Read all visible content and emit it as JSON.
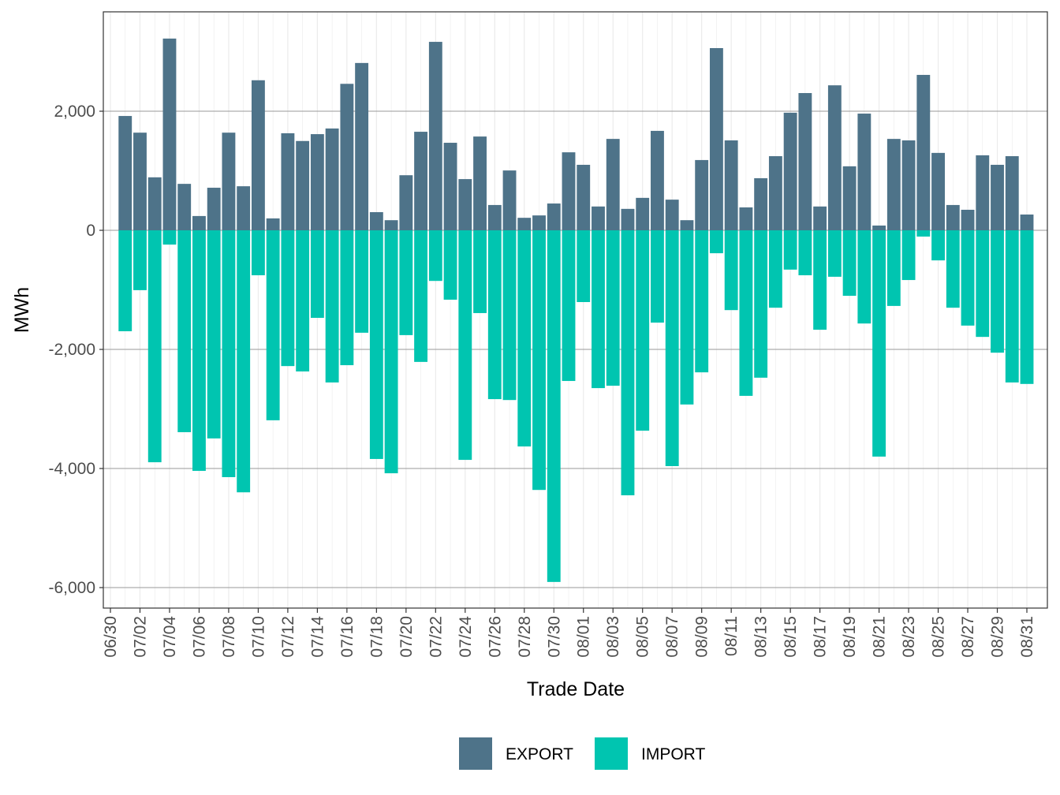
{
  "chart_data": {
    "type": "bar",
    "stacked": true,
    "x_label": "Trade Date",
    "y_label": "MWh",
    "categories": [
      "06/30",
      null,
      "07/02",
      null,
      "07/04",
      null,
      "07/06",
      null,
      "07/08",
      null,
      "07/10",
      null,
      "07/12",
      null,
      "07/14",
      null,
      "07/16",
      null,
      "07/18",
      null,
      "07/20",
      null,
      "07/22",
      null,
      "07/24",
      null,
      "07/26",
      null,
      "07/28",
      null,
      "07/30",
      null,
      "08/01",
      null,
      "08/03",
      null,
      "08/05",
      null,
      "08/07",
      null,
      "08/09",
      null,
      "08/11",
      null,
      "08/13",
      null,
      "08/15",
      null,
      "08/17",
      null,
      "08/19",
      null,
      "08/21",
      null,
      "08/23",
      null,
      "08/25",
      null,
      "08/27",
      null,
      "08/29",
      null,
      "08/31"
    ],
    "series": [
      {
        "name": "EXPORT",
        "color": "#4e7389",
        "values": [
          null,
          1920,
          1640,
          890,
          3220,
          780,
          240,
          715,
          1640,
          740,
          2520,
          200,
          1630,
          1500,
          1615,
          1710,
          2460,
          2810,
          305,
          170,
          925,
          1655,
          3165,
          1470,
          860,
          1575,
          425,
          1005,
          210,
          250,
          450,
          1310,
          1100,
          400,
          1535,
          360,
          545,
          1670,
          515,
          170,
          1180,
          3060,
          1510,
          385,
          875,
          1245,
          1975,
          2305,
          400,
          2435,
          1075,
          1960,
          80,
          1535,
          1510,
          2610,
          1300,
          425,
          345,
          1260,
          1100,
          1245,
          265
        ]
      },
      {
        "name": "IMPORT",
        "color": "#00c5b0",
        "values": [
          null,
          -1695,
          -1005,
          -3895,
          -240,
          -3390,
          -4040,
          -3495,
          -4145,
          -4400,
          -755,
          -3190,
          -2280,
          -2370,
          -1470,
          -2555,
          -2265,
          -1720,
          -3840,
          -4080,
          -1760,
          -2210,
          -850,
          -1165,
          -3855,
          -1390,
          -2835,
          -2850,
          -3630,
          -4360,
          -5905,
          -2530,
          -1205,
          -2650,
          -2610,
          -4450,
          -3365,
          -1550,
          -3960,
          -2925,
          -2385,
          -385,
          -1340,
          -2780,
          -2475,
          -1300,
          -660,
          -755,
          -1670,
          -780,
          -1100,
          -1565,
          -3800,
          -1270,
          -835,
          -105,
          -505,
          -1300,
          -1600,
          -1790,
          -2055,
          -2555,
          -2580
        ]
      }
    ],
    "ylim": [
      -6344,
      3669
    ],
    "yticks": [
      {
        "value": -6000,
        "label": "-6,000"
      },
      {
        "value": -4000,
        "label": "-4,000"
      },
      {
        "value": -2000,
        "label": "-2,000"
      },
      0,
      {
        "value": 2000,
        "label": "2,000"
      }
    ],
    "grid": true,
    "legend": "bottom"
  }
}
